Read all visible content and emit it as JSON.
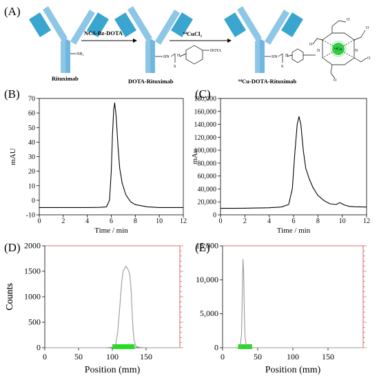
{
  "panel_letters": {
    "a": "(A)",
    "b": "(B)",
    "c": "(C)",
    "d": "(D)",
    "e": "(E)"
  },
  "scheme": {
    "step1_reagent": "NCS-Bz-DOTA",
    "step2_reagent": "⁶⁴CuCl₂",
    "antibody_1": "Rituximab",
    "antibody_2": "DOTA-Rituximab",
    "antibody_3": "⁶⁴Cu-DOTA-Rituximab",
    "amine_label": "NH₂",
    "hn": "HN",
    "h": "H",
    "s": "S",
    "n": "N",
    "o": "O",
    "dota": "DOTA",
    "cu_label": "⁶⁴Cu",
    "colors": {
      "antibody": "#8ec6e6",
      "antibody_dark": "#3aa6cf",
      "copper": "#33cc44"
    }
  },
  "chart_data": [
    {
      "panel": "B",
      "type": "line",
      "xlabel": "Time / min",
      "ylabel": "mAU",
      "xlim": [
        0,
        12
      ],
      "ylim": [
        -10,
        70
      ],
      "xticks": [
        "0",
        "2",
        "4",
        "6",
        "8",
        "10",
        "12"
      ],
      "yticks": [
        "-10",
        "0",
        "10",
        "20",
        "30",
        "40",
        "50",
        "60",
        "70"
      ],
      "series": [
        {
          "x": [
            0,
            2,
            4,
            5,
            5.6,
            5.85,
            6.0,
            6.1,
            6.2,
            6.28,
            6.4,
            6.55,
            6.7,
            6.9,
            7.2,
            7.6,
            8.0,
            9,
            10,
            12
          ],
          "y": [
            -5,
            -5,
            -5,
            -4.9,
            -4.5,
            0,
            20,
            45,
            62,
            67,
            58,
            38,
            22,
            12,
            4,
            -1,
            -3,
            -4.5,
            -5,
            -5
          ]
        }
      ],
      "color": "#000000"
    },
    {
      "panel": "C",
      "type": "line",
      "xlabel": "Time / min",
      "ylabel": "mAu",
      "xlim": [
        0,
        12
      ],
      "ylim": [
        0,
        180000
      ],
      "xticks": [
        "0",
        "2",
        "4",
        "6",
        "8",
        "10",
        "12"
      ],
      "yticks": [
        "0",
        "20,000",
        "40,000",
        "60,000",
        "80,000",
        "100,000",
        "120,000",
        "140,000",
        "160,000",
        "180,000"
      ],
      "series": [
        {
          "x": [
            0,
            1,
            2,
            3,
            4,
            5,
            5.6,
            5.9,
            6.1,
            6.3,
            6.45,
            6.6,
            6.8,
            7.0,
            7.3,
            7.6,
            8.0,
            8.5,
            9.0,
            9.5,
            9.8,
            10.2,
            10.6,
            11,
            12
          ],
          "y": [
            10000,
            10000,
            10200,
            10500,
            11000,
            12000,
            16000,
            40000,
            95000,
            140000,
            152000,
            140000,
            100000,
            72000,
            55000,
            42000,
            30000,
            22000,
            17000,
            16000,
            19000,
            15000,
            13000,
            12500,
            12000
          ]
        }
      ],
      "color": "#000000"
    },
    {
      "panel": "D",
      "type": "line",
      "xlabel": "Position (mm)",
      "ylabel": "Counts",
      "xlim": [
        0,
        200
      ],
      "ylim": [
        0,
        2000
      ],
      "xticks": [
        "0",
        "50",
        "100",
        "150"
      ],
      "yticks": [
        "0",
        "500",
        "1000",
        "1500",
        "2000"
      ],
      "series": [
        {
          "x": [
            0,
            90,
            100,
            105,
            108,
            111,
            114,
            116,
            118,
            120,
            122,
            124,
            126,
            128,
            130,
            132,
            135,
            140,
            150,
            200
          ],
          "y": [
            0,
            0,
            10,
            60,
            300,
            800,
            1300,
            1500,
            1550,
            1600,
            1560,
            1520,
            1420,
            1100,
            500,
            150,
            30,
            5,
            0,
            0
          ]
        }
      ],
      "roi": [
        100,
        133
      ],
      "color": "#999999",
      "roi_color": "#22dd22",
      "frame_color": "#d04040"
    },
    {
      "panel": "E",
      "type": "line",
      "xlabel": "Position (mm)",
      "ylabel": "Counts",
      "xlim": [
        0,
        200
      ],
      "ylim": [
        0,
        15000
      ],
      "xticks": [
        "0",
        "50",
        "100",
        "150"
      ],
      "yticks": [
        "0",
        "5,000",
        "10,000",
        "15,000"
      ],
      "series": [
        {
          "x": [
            0,
            20,
            25,
            27,
            28,
            29,
            30,
            31,
            32,
            34,
            38,
            45,
            200
          ],
          "y": [
            0,
            0,
            50,
            2000,
            8000,
            13000,
            11000,
            5000,
            1500,
            200,
            30,
            0,
            0
          ]
        }
      ],
      "roi": [
        22,
        42
      ],
      "color": "#999999",
      "roi_color": "#22dd22",
      "frame_color": "#d04040"
    }
  ]
}
